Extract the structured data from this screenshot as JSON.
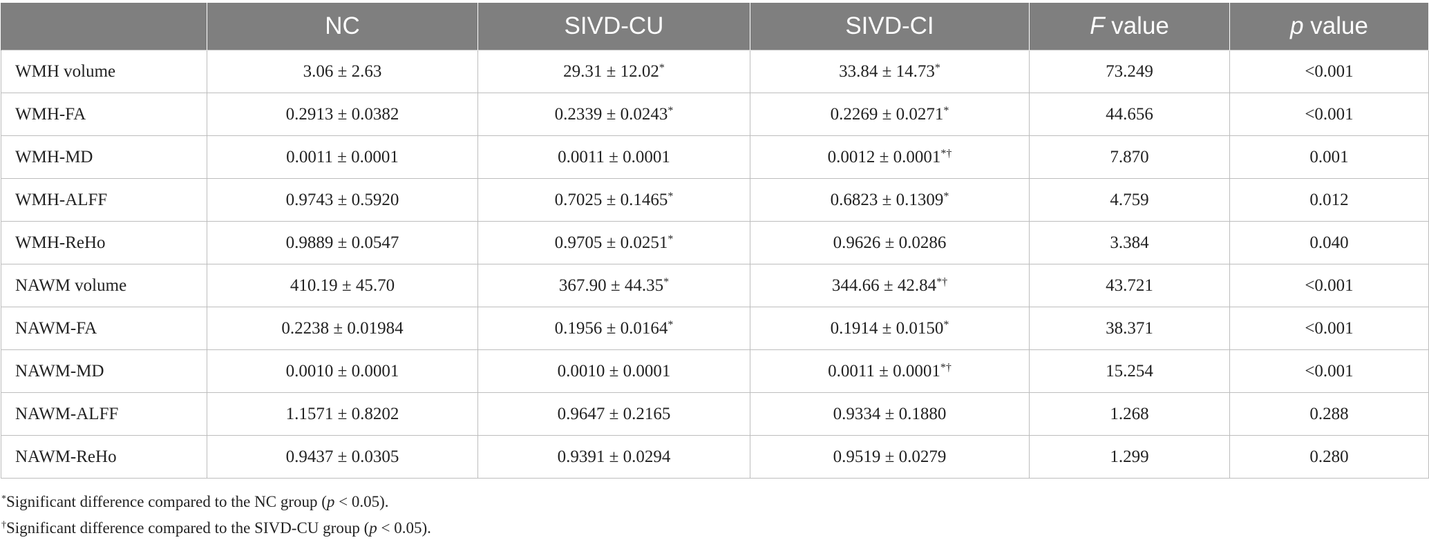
{
  "table": {
    "headers": [
      {
        "pre": "",
        "italic": "",
        "post": ""
      },
      {
        "pre": "NC",
        "italic": "",
        "post": ""
      },
      {
        "pre": "SIVD-CU",
        "italic": "",
        "post": ""
      },
      {
        "pre": "SIVD-CI",
        "italic": "",
        "post": ""
      },
      {
        "pre": "",
        "italic": "F",
        "post": " value"
      },
      {
        "pre": "",
        "italic": "p",
        "post": " value"
      }
    ],
    "rows": [
      {
        "label": "WMH volume",
        "cells": [
          {
            "v": "3.06 ± 2.63",
            "m": ""
          },
          {
            "v": "29.31 ± 12.02",
            "m": "*"
          },
          {
            "v": "33.84 ± 14.73",
            "m": "*"
          },
          {
            "v": "73.249",
            "m": ""
          },
          {
            "v": "<0.001",
            "m": ""
          }
        ]
      },
      {
        "label": "WMH-FA",
        "cells": [
          {
            "v": "0.2913 ± 0.0382",
            "m": ""
          },
          {
            "v": "0.2339 ± 0.0243",
            "m": "*"
          },
          {
            "v": "0.2269 ± 0.0271",
            "m": "*"
          },
          {
            "v": "44.656",
            "m": ""
          },
          {
            "v": "<0.001",
            "m": ""
          }
        ]
      },
      {
        "label": "WMH-MD",
        "cells": [
          {
            "v": "0.0011 ± 0.0001",
            "m": ""
          },
          {
            "v": "0.0011 ± 0.0001",
            "m": ""
          },
          {
            "v": "0.0012 ± 0.0001",
            "m": "*†"
          },
          {
            "v": "7.870",
            "m": ""
          },
          {
            "v": "0.001",
            "m": ""
          }
        ]
      },
      {
        "label": "WMH-ALFF",
        "cells": [
          {
            "v": "0.9743 ± 0.5920",
            "m": ""
          },
          {
            "v": "0.7025 ± 0.1465",
            "m": "*"
          },
          {
            "v": "0.6823 ± 0.1309",
            "m": "*"
          },
          {
            "v": "4.759",
            "m": ""
          },
          {
            "v": "0.012",
            "m": ""
          }
        ]
      },
      {
        "label": "WMH-ReHo",
        "cells": [
          {
            "v": "0.9889 ± 0.0547",
            "m": ""
          },
          {
            "v": "0.9705 ± 0.0251",
            "m": "*"
          },
          {
            "v": "0.9626 ± 0.0286",
            "m": ""
          },
          {
            "v": "3.384",
            "m": ""
          },
          {
            "v": "0.040",
            "m": ""
          }
        ]
      },
      {
        "label": "NAWM volume",
        "cells": [
          {
            "v": "410.19 ± 45.70",
            "m": ""
          },
          {
            "v": "367.90 ± 44.35",
            "m": "*"
          },
          {
            "v": "344.66 ± 42.84",
            "m": "*†"
          },
          {
            "v": "43.721",
            "m": ""
          },
          {
            "v": "<0.001",
            "m": ""
          }
        ]
      },
      {
        "label": "NAWM-FA",
        "cells": [
          {
            "v": "0.2238 ± 0.01984",
            "m": ""
          },
          {
            "v": "0.1956 ± 0.0164",
            "m": "*"
          },
          {
            "v": "0.1914 ± 0.0150",
            "m": "*"
          },
          {
            "v": "38.371",
            "m": ""
          },
          {
            "v": "<0.001",
            "m": ""
          }
        ]
      },
      {
        "label": "NAWM-MD",
        "cells": [
          {
            "v": "0.0010 ± 0.0001",
            "m": ""
          },
          {
            "v": "0.0010 ± 0.0001",
            "m": ""
          },
          {
            "v": "0.0011 ± 0.0001",
            "m": "*†"
          },
          {
            "v": "15.254",
            "m": ""
          },
          {
            "v": "<0.001",
            "m": ""
          }
        ]
      },
      {
        "label": "NAWM-ALFF",
        "cells": [
          {
            "v": "1.1571 ± 0.8202",
            "m": ""
          },
          {
            "v": "0.9647 ± 0.2165",
            "m": ""
          },
          {
            "v": "0.9334 ± 0.1880",
            "m": ""
          },
          {
            "v": "1.268",
            "m": ""
          },
          {
            "v": "0.288",
            "m": ""
          }
        ]
      },
      {
        "label": "NAWM-ReHo",
        "cells": [
          {
            "v": "0.9437 ± 0.0305",
            "m": ""
          },
          {
            "v": "0.9391 ± 0.0294",
            "m": ""
          },
          {
            "v": "0.9519 ± 0.0279",
            "m": ""
          },
          {
            "v": "1.299",
            "m": ""
          },
          {
            "v": "0.280",
            "m": ""
          }
        ]
      }
    ]
  },
  "footnotes": [
    {
      "mark": "*",
      "pre": "Significant difference compared to the NC group (",
      "italic": "p",
      "post": " < 0.05)."
    },
    {
      "mark": "†",
      "pre": "Significant difference compared to the SIVD-CU group (",
      "italic": "p",
      "post": " < 0.05)."
    }
  ],
  "colors": {
    "header_bg": "#7f7f7f",
    "header_text": "#ffffff",
    "grid": "#bdbdbd",
    "text": "#222222"
  }
}
